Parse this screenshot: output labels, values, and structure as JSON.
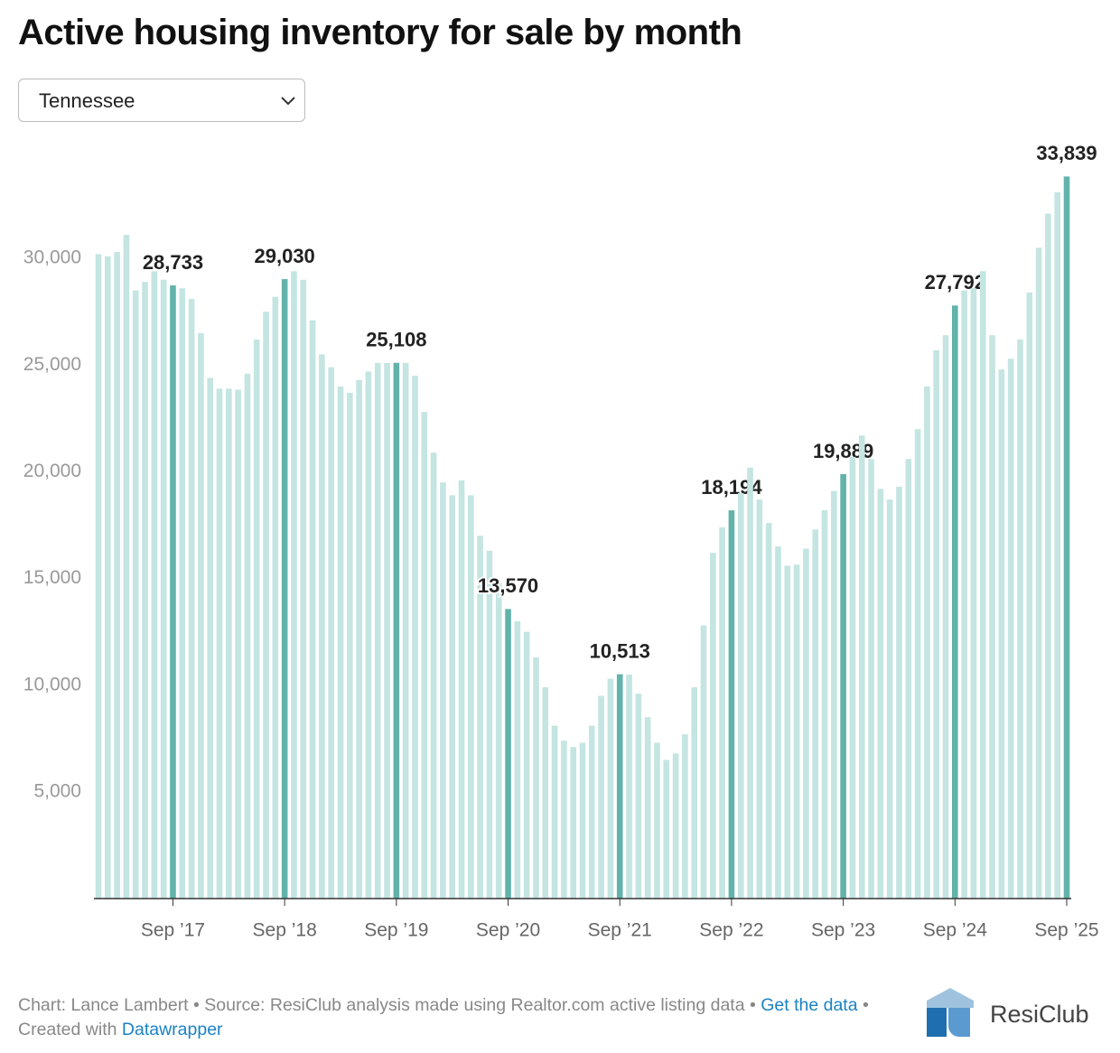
{
  "chart_data": {
    "type": "bar",
    "title": "Active housing inventory for sale by month",
    "dropdown": "Tennessee",
    "categories": [
      null,
      null,
      null,
      null,
      null,
      null,
      null,
      null,
      "Sep ’17",
      null,
      null,
      null,
      null,
      null,
      null,
      null,
      null,
      null,
      null,
      null,
      "Sep ’18",
      null,
      null,
      null,
      null,
      null,
      null,
      null,
      null,
      null,
      null,
      null,
      "Sep ’19",
      null,
      null,
      null,
      null,
      null,
      null,
      null,
      null,
      null,
      null,
      null,
      "Sep ’20",
      null,
      null,
      null,
      null,
      null,
      null,
      null,
      null,
      null,
      null,
      null,
      "Sep ’21",
      null,
      null,
      null,
      null,
      null,
      null,
      null,
      null,
      null,
      null,
      null,
      "Sep ’22",
      null,
      null,
      null,
      null,
      null,
      null,
      null,
      null,
      null,
      null,
      null,
      "Sep ’23",
      null,
      null,
      null,
      null,
      null,
      null,
      null,
      null,
      null,
      null,
      null,
      "Sep ’24",
      null,
      null,
      null,
      null,
      null,
      null,
      null,
      null,
      null,
      null,
      null,
      "Sep ’25"
    ],
    "values": [
      30200,
      30100,
      30300,
      31100,
      28500,
      28900,
      29400,
      29000,
      28733,
      28600,
      28100,
      26500,
      24400,
      23900,
      23900,
      23850,
      24600,
      26200,
      27500,
      28200,
      29030,
      29400,
      29000,
      27100,
      25500,
      24900,
      24000,
      23700,
      24300,
      24700,
      25100,
      25100,
      25108,
      25100,
      24500,
      22800,
      20900,
      19500,
      18900,
      19600,
      18900,
      17000,
      16300,
      14800,
      13570,
      13000,
      12500,
      11300,
      9900,
      8100,
      7400,
      7100,
      7300,
      8100,
      9500,
      10300,
      10513,
      10500,
      9600,
      8500,
      7300,
      6500,
      6800,
      7700,
      9900,
      12800,
      16200,
      17400,
      18194,
      19000,
      20200,
      18700,
      17600,
      16500,
      15600,
      15650,
      16400,
      17300,
      18200,
      19100,
      19889,
      20700,
      21700,
      20600,
      19200,
      18700,
      19300,
      20600,
      22000,
      24000,
      25700,
      26400,
      27792,
      28500,
      28600,
      29400,
      26400,
      24800,
      25300,
      26200,
      28400,
      30500,
      32100,
      33100,
      33839
    ],
    "value_labels": [
      null,
      null,
      null,
      null,
      null,
      null,
      null,
      null,
      "28,733",
      null,
      null,
      null,
      null,
      null,
      null,
      null,
      null,
      null,
      null,
      null,
      "29,030",
      null,
      null,
      null,
      null,
      null,
      null,
      null,
      null,
      null,
      null,
      null,
      "25,108",
      null,
      null,
      null,
      null,
      null,
      null,
      null,
      null,
      null,
      null,
      null,
      "13,570",
      null,
      null,
      null,
      null,
      null,
      null,
      null,
      null,
      null,
      null,
      null,
      "10,513",
      null,
      null,
      null,
      null,
      null,
      null,
      null,
      null,
      null,
      null,
      null,
      "18,194",
      null,
      null,
      null,
      null,
      null,
      null,
      null,
      null,
      null,
      null,
      null,
      "19,889",
      null,
      null,
      null,
      null,
      null,
      null,
      null,
      null,
      null,
      null,
      null,
      "27,792",
      null,
      null,
      null,
      null,
      null,
      null,
      null,
      null,
      null,
      null,
      null,
      "33,839"
    ],
    "color": "#c4e5e1",
    "highlight_color": "#62b3aa",
    "ylim": [
      0,
      35000
    ],
    "yticks": [
      {
        "value": 5000,
        "label": "5,000"
      },
      {
        "value": 10000,
        "label": "10,000"
      },
      {
        "value": 15000,
        "label": "15,000"
      },
      {
        "value": 20000,
        "label": "20,000"
      },
      {
        "value": 25000,
        "label": "25,000"
      },
      {
        "value": 30000,
        "label": "30,000"
      }
    ],
    "grid": false
  },
  "footer": {
    "text": "Chart: Lance Lambert • Source: ResiClub analysis made using Realtor.com active listing data •",
    "link1": "Get the data",
    "middle": "• Created with",
    "link2": "Datawrapper",
    "brand": "ResiClub"
  }
}
